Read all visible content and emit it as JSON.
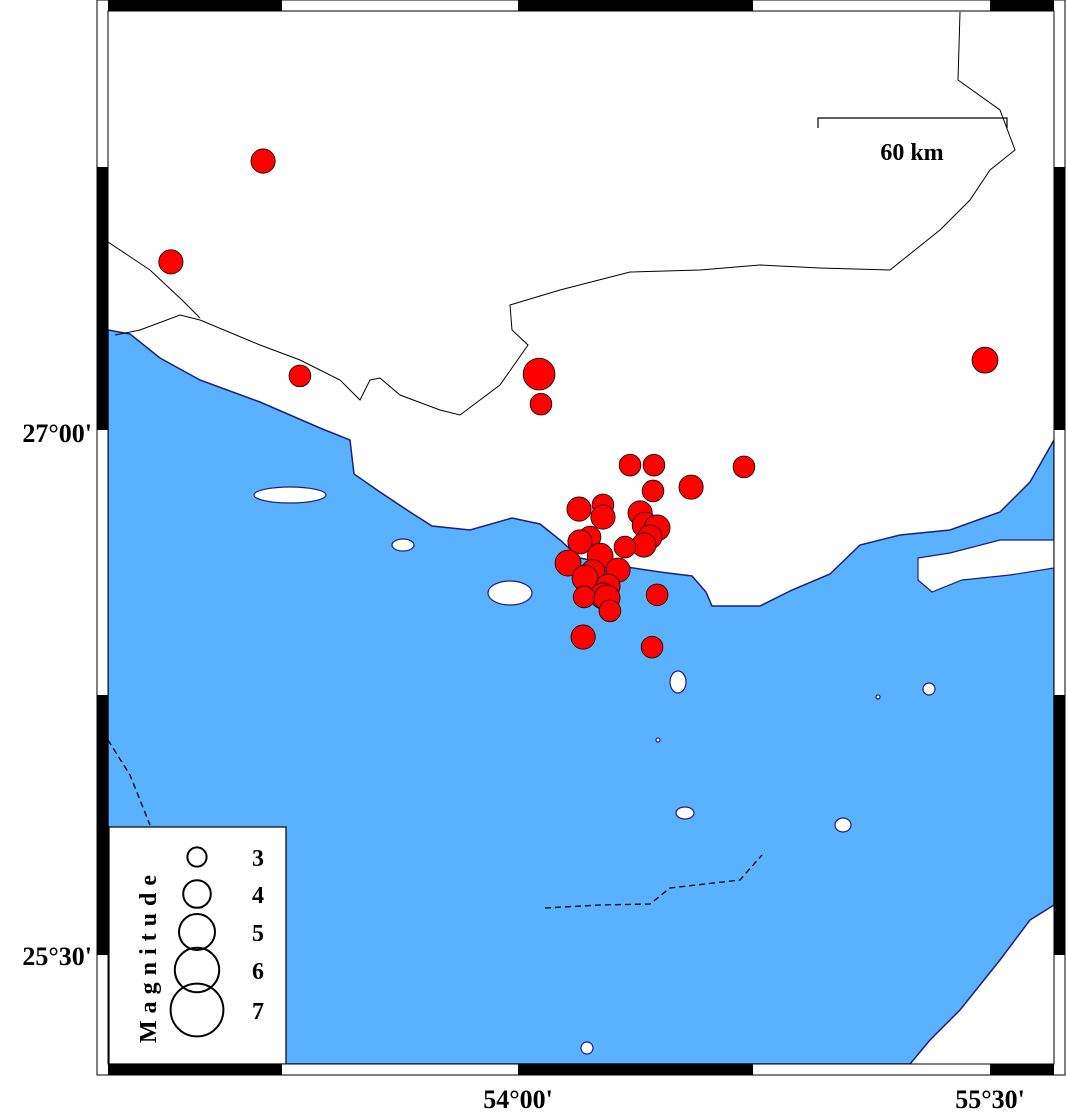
{
  "map": {
    "colors": {
      "sea": "#5ab1fd",
      "land": "#ffffff",
      "coast": "#1b1f7a",
      "event": "#ff0000"
    },
    "lon_labels": [
      {
        "lon": 54.0,
        "text": "54°00'"
      },
      {
        "lon": 55.5,
        "text": "55°30'"
      }
    ],
    "lat_labels": [
      {
        "lat": 27.0,
        "text": "27°00'"
      },
      {
        "lat": 25.5,
        "text": "25°30'"
      }
    ],
    "scale_bar": {
      "label": "60 km"
    },
    "legend": {
      "title": "Magnitude",
      "entries": [
        {
          "mag": 3,
          "label": "3"
        },
        {
          "mag": 4,
          "label": "4"
        },
        {
          "mag": 5,
          "label": "5"
        },
        {
          "mag": 6,
          "label": "6"
        },
        {
          "mag": 7,
          "label": "7"
        }
      ]
    },
    "events": [
      {
        "lon": 53.19,
        "lat": 27.777,
        "mag": 3.6
      },
      {
        "lon": 52.897,
        "lat": 27.488,
        "mag": 3.6
      },
      {
        "lon": 53.307,
        "lat": 27.161,
        "mag": 3.3
      },
      {
        "lon": 54.067,
        "lat": 27.166,
        "mag": 4.5
      },
      {
        "lon": 54.073,
        "lat": 27.08,
        "mag": 3.3
      },
      {
        "lon": 55.484,
        "lat": 27.206,
        "mag": 3.8
      },
      {
        "lon": 54.356,
        "lat": 26.905,
        "mag": 3.3
      },
      {
        "lon": 54.432,
        "lat": 26.905,
        "mag": 3.3
      },
      {
        "lon": 54.718,
        "lat": 26.9,
        "mag": 3.3
      },
      {
        "lon": 54.55,
        "lat": 26.842,
        "mag": 3.6
      },
      {
        "lon": 54.429,
        "lat": 26.831,
        "mag": 3.3
      },
      {
        "lon": 54.194,
        "lat": 26.779,
        "mag": 3.6
      },
      {
        "lon": 54.27,
        "lat": 26.791,
        "mag": 3.3
      },
      {
        "lon": 54.27,
        "lat": 26.756,
        "mag": 3.6
      },
      {
        "lon": 54.388,
        "lat": 26.768,
        "mag": 3.6
      },
      {
        "lon": 54.404,
        "lat": 26.733,
        "mag": 3.8
      },
      {
        "lon": 54.442,
        "lat": 26.725,
        "mag": 3.8
      },
      {
        "lon": 54.419,
        "lat": 26.699,
        "mag": 3.6
      },
      {
        "lon": 54.4,
        "lat": 26.676,
        "mag": 3.6
      },
      {
        "lon": 54.229,
        "lat": 26.699,
        "mag": 3.3
      },
      {
        "lon": 54.197,
        "lat": 26.685,
        "mag": 3.6
      },
      {
        "lon": 54.34,
        "lat": 26.67,
        "mag": 3.3
      },
      {
        "lon": 54.261,
        "lat": 26.644,
        "mag": 3.8
      },
      {
        "lon": 54.159,
        "lat": 26.624,
        "mag": 3.8
      },
      {
        "lon": 54.238,
        "lat": 26.599,
        "mag": 3.6
      },
      {
        "lon": 54.318,
        "lat": 26.604,
        "mag": 3.6
      },
      {
        "lon": 54.213,
        "lat": 26.581,
        "mag": 3.8
      },
      {
        "lon": 54.286,
        "lat": 26.558,
        "mag": 3.6
      },
      {
        "lon": 54.27,
        "lat": 26.53,
        "mag": 3.8
      },
      {
        "lon": 54.21,
        "lat": 26.527,
        "mag": 3.3
      },
      {
        "lon": 54.283,
        "lat": 26.524,
        "mag": 3.8
      },
      {
        "lon": 54.292,
        "lat": 26.487,
        "mag": 3.3
      },
      {
        "lon": 54.442,
        "lat": 26.533,
        "mag": 3.3
      },
      {
        "lon": 54.207,
        "lat": 26.412,
        "mag": 3.6
      },
      {
        "lon": 54.426,
        "lat": 26.383,
        "mag": 3.3
      }
    ]
  }
}
